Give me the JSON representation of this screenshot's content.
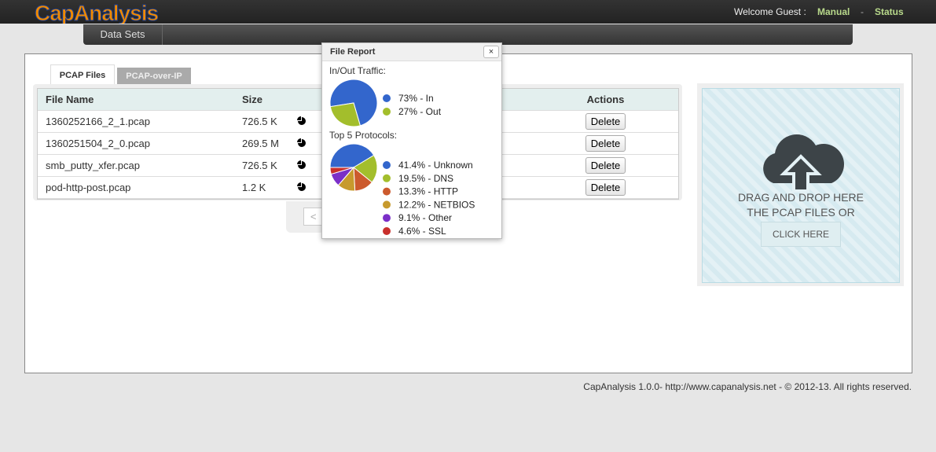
{
  "header": {
    "logo": "CapAnalysis",
    "welcome": "Welcome Guest :",
    "links": [
      "Manual",
      "Status"
    ],
    "separator": "-"
  },
  "nav": {
    "tabs": [
      "Data Sets"
    ]
  },
  "tabs": [
    "PCAP Files",
    "PCAP-over-IP"
  ],
  "table": {
    "columns": [
      "File Name",
      "Size",
      "Actions"
    ],
    "rows": [
      [
        "1360252166_2_1.pcap",
        "726.5 K"
      ],
      [
        "1360251504_2_0.pcap",
        "269.5 M"
      ],
      [
        "smb_putty_xfer.pcap",
        "726.5 K"
      ],
      [
        "pod-http-post.pcap",
        "1.2 K"
      ]
    ],
    "action": "Delete"
  },
  "pagination": {
    "prev": "<"
  },
  "dropzone": {
    "lines": [
      "DRAG AND DROP HERE",
      "THE PCAP FILES OR"
    ],
    "button": "CLICK HERE"
  },
  "popup": {
    "title": "File Report",
    "close": "×",
    "charts": [
      {
        "type": "pie",
        "heading": "In/Out Traffic:",
        "slices": [
          {
            "label": "73% - In",
            "value": 73,
            "color": "#3366cc"
          },
          {
            "label": "27% - Out",
            "value": 27,
            "color": "#a3be2c"
          }
        ]
      },
      {
        "type": "pie",
        "heading": "Top 5 Protocols:",
        "slices": [
          {
            "label": "41.4% - Unknown",
            "value": 41.4,
            "color": "#3366cc"
          },
          {
            "label": "19.5% - DNS",
            "value": 19.5,
            "color": "#a3be2c"
          },
          {
            "label": "13.3% - HTTP",
            "value": 13.3,
            "color": "#cc5a2d"
          },
          {
            "label": "12.2% - NETBIOS",
            "value": 12.2,
            "color": "#c79a2d"
          },
          {
            "label": "9.1% - Other",
            "value": 9.1,
            "color": "#7b2fc8"
          },
          {
            "label": "4.6% - SSL",
            "value": 4.6,
            "color": "#c9302c"
          }
        ]
      }
    ]
  },
  "footer": "CapAnalysis 1.0.0- http://www.capanalysis.net - © 2012-13. All rights reserved."
}
